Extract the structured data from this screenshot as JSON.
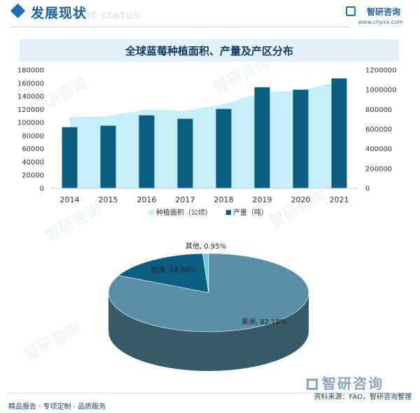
{
  "header": {
    "section_title": "发展现状",
    "section_title_bg": "ent status",
    "brand": "智研咨询",
    "url": "www.chyxx.com"
  },
  "watermark": "智研咨询",
  "footer": {
    "left": "精品报告 · 专项定制 · 品质服务",
    "right": "资料来源：FAO，智研咨询整理",
    "logo": "智研咨询"
  },
  "chart_data": [
    {
      "type": "bar",
      "title": "全球蓝莓种植面积、产量及产区分布",
      "categories": [
        "2014",
        "2015",
        "2016",
        "2017",
        "2018",
        "2019",
        "2020",
        "2021"
      ],
      "series": [
        {
          "name": "种植面积（公顷）",
          "render": "area",
          "axis": "left",
          "color": "#c6eef8",
          "values": [
            108000,
            110000,
            120000,
            118000,
            128000,
            146000,
            149000,
            162000
          ]
        },
        {
          "name": "产量（吨）",
          "render": "bar",
          "axis": "right",
          "color": "#0b5e80",
          "values": [
            620000,
            635000,
            740000,
            705000,
            805000,
            1025000,
            1000000,
            1115000
          ]
        }
      ],
      "y_left": {
        "range": [
          0,
          180000
        ],
        "ticks": [
          "0",
          "20000",
          "40000",
          "60000",
          "80000",
          "100000",
          "120000",
          "140000",
          "160000",
          "180000"
        ]
      },
      "y_right": {
        "range": [
          0,
          1200000
        ],
        "ticks": [
          "0",
          "200000",
          "400000",
          "600000",
          "800000",
          "1000000",
          "1200000"
        ]
      },
      "grid": false,
      "legend": "bottom-center"
    },
    {
      "type": "pie",
      "style": "3d",
      "slices": [
        {
          "label": "美洲, 82.18%",
          "value": 82.18,
          "color": "#5a8fa8"
        },
        {
          "label": "欧洲, 16.86%",
          "value": 16.86,
          "color": "#0b5e80"
        },
        {
          "label": "其他, 0.95%",
          "value": 0.95,
          "color": "#6ccbe8"
        }
      ]
    }
  ]
}
